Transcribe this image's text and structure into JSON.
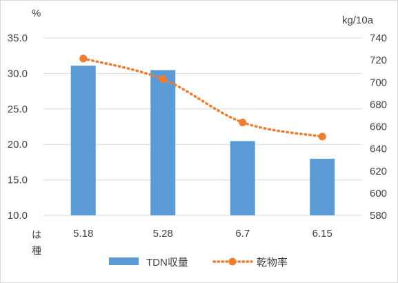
{
  "chart_data": {
    "type": "bar",
    "categories": [
      "5.18",
      "5.28",
      "6.7",
      "6.15"
    ],
    "category_axis_label_lines": [
      "は",
      "種"
    ],
    "y_left": {
      "unit": "%",
      "ticks": [
        "35.0",
        "30.0",
        "25.0",
        "20.0",
        "15.0",
        "10.0"
      ],
      "ylim": [
        10,
        35
      ]
    },
    "y_right": {
      "unit": "kg/10a",
      "ticks": [
        "740",
        "720",
        "700",
        "680",
        "660",
        "640",
        "620",
        "600",
        "580"
      ],
      "ylim": [
        580,
        740
      ]
    },
    "series": [
      {
        "name": "TDN収量",
        "type": "bar",
        "axis": "right",
        "color": "#5b9bd5",
        "values": [
          715,
          711,
          647,
          631
        ]
      },
      {
        "name": "乾物率",
        "type": "line",
        "style": "dotted",
        "marker": "circle",
        "axis": "left",
        "color": "#ed7d31",
        "values": [
          32.1,
          29.2,
          23.1,
          21.1
        ]
      }
    ],
    "legend": "bottom",
    "grid": "horizontal"
  }
}
